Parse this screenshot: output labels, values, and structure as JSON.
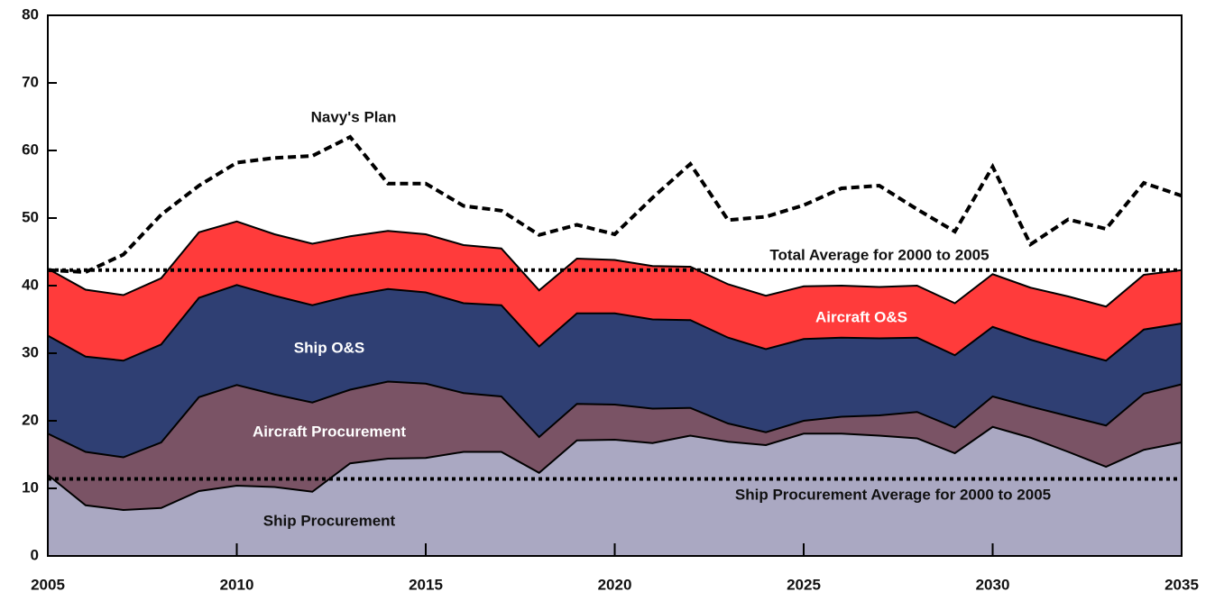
{
  "chart_data": {
    "type": "stacked-area",
    "x": [
      2005,
      2006,
      2007,
      2008,
      2009,
      2010,
      2011,
      2012,
      2013,
      2014,
      2015,
      2016,
      2017,
      2018,
      2019,
      2020,
      2021,
      2022,
      2023,
      2024,
      2025,
      2026,
      2027,
      2028,
      2029,
      2030,
      2031,
      2032,
      2033,
      2034,
      2035
    ],
    "xlim": [
      2005,
      2035
    ],
    "xticks": [
      2005,
      2010,
      2015,
      2020,
      2025,
      2030,
      2035
    ],
    "ylim": [
      0,
      80
    ],
    "yticks": [
      0,
      10,
      20,
      30,
      40,
      50,
      60,
      70,
      80
    ],
    "series": [
      {
        "name": "Ship Procurement",
        "color": "#aaa8c2",
        "label_color": "#111111",
        "values": [
          12,
          7.5,
          6.8,
          7.1,
          9.6,
          10.4,
          10.2,
          9.5,
          13.7,
          14.4,
          14.5,
          15.4,
          15.4,
          12.3,
          17.1,
          17.2,
          16.7,
          17.8,
          16.9,
          16.4,
          18.1,
          18.1,
          17.8,
          17.4,
          15.2,
          19.1,
          17.5,
          15.4,
          13.2,
          15.7,
          16.8
        ]
      },
      {
        "name": "Aircraft Procurement",
        "color": "#7a5365",
        "label_color": "#ffffff",
        "values": [
          6.1,
          7.9,
          7.8,
          9.7,
          13.9,
          14.9,
          13.7,
          13.2,
          10.9,
          11.4,
          11.0,
          8.7,
          8.2,
          5.3,
          5.4,
          5.2,
          5.1,
          4.1,
          2.7,
          1.9,
          1.9,
          2.5,
          3.0,
          3.9,
          3.8,
          4.5,
          4.6,
          5.3,
          6.1,
          8.3,
          8.6
        ]
      },
      {
        "name": "Ship O&S",
        "color": "#2f3f73",
        "label_color": "#ffffff",
        "values": [
          14.5,
          14.1,
          14.3,
          14.5,
          14.7,
          14.8,
          14.6,
          14.4,
          13.9,
          13.7,
          13.5,
          13.3,
          13.5,
          13.4,
          13.4,
          13.5,
          13.2,
          13.0,
          12.7,
          12.3,
          12.1,
          11.7,
          11.4,
          11.0,
          10.7,
          10.3,
          9.9,
          9.7,
          9.6,
          9.5,
          9.0
        ]
      },
      {
        "name": "Aircraft O&S",
        "color": "#ff3b3b",
        "label_color": "#ffffff",
        "values": [
          9.9,
          9.9,
          9.7,
          9.8,
          9.7,
          9.4,
          9.1,
          9.1,
          8.8,
          8.6,
          8.6,
          8.6,
          8.4,
          8.3,
          8.1,
          7.9,
          7.9,
          7.9,
          7.9,
          7.9,
          7.8,
          7.7,
          7.6,
          7.7,
          7.7,
          7.8,
          7.7,
          8.0,
          8.0,
          8.1,
          7.9
        ]
      }
    ],
    "plan": {
      "name": "Navy's Plan",
      "color": "#000000",
      "values": [
        42.3,
        42.0,
        44.6,
        50.5,
        54.8,
        58.2,
        58.9,
        59.2,
        62.0,
        55.1,
        55.1,
        51.8,
        51.1,
        47.5,
        49.0,
        47.6,
        53.0,
        58.0,
        49.7,
        50.2,
        51.9,
        54.4,
        54.8,
        51.3,
        48.0,
        57.6,
        46.1,
        49.8,
        48.4,
        55.2,
        53.3
      ]
    },
    "reference_lines": [
      {
        "name": "Total Average for 2000 to 2005",
        "value": 42.3
      },
      {
        "name": "Ship Procurement Average for 2000 to 2005",
        "value": 11.4
      }
    ]
  }
}
